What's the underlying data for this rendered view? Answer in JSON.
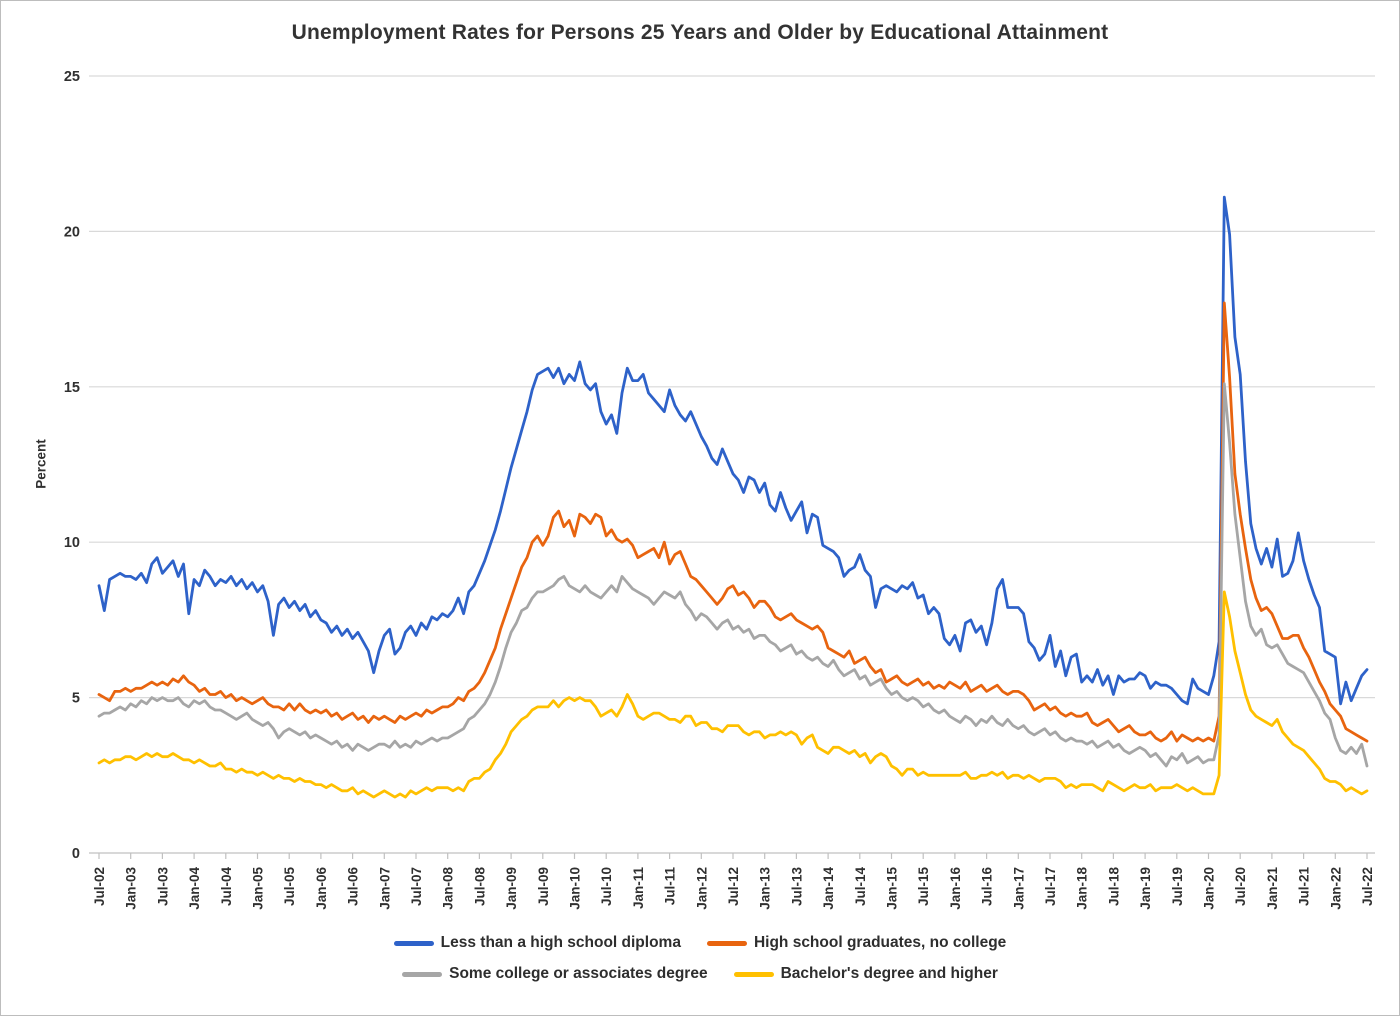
{
  "chart_data": {
    "type": "line",
    "title": "Unemployment Rates for Persons 25 Years and Older by Educational Attainment",
    "xlabel": "",
    "ylabel": "Percent",
    "ylim": [
      0,
      25
    ],
    "y_ticks": [
      0,
      5,
      10,
      15,
      20,
      25
    ],
    "grid": "horizontal",
    "legend_position": "bottom",
    "x_start": "Jul-2002",
    "x_end": "Jul-2022",
    "x_interval": "monthly",
    "x_tick_every_months": 6,
    "x_tick_labels": [
      "Jul-02",
      "Jan-03",
      "Jul-03",
      "Jan-04",
      "Jul-04",
      "Jan-05",
      "Jul-05",
      "Jan-06",
      "Jul-06",
      "Jan-07",
      "Jul-07",
      "Jan-08",
      "Jul-08",
      "Jan-09",
      "Jul-09",
      "Jan-10",
      "Jul-10",
      "Jan-11",
      "Jul-11",
      "Jan-12",
      "Jul-12",
      "Jan-13",
      "Jul-13",
      "Jan-14",
      "Jul-14",
      "Jan-15",
      "Jul-15",
      "Jan-16",
      "Jul-16",
      "Jan-17",
      "Jul-17",
      "Jan-18",
      "Jul-18",
      "Jan-19",
      "Jul-19",
      "Jan-20",
      "Jul-20",
      "Jan-21",
      "Jul-21",
      "Jan-22",
      "Jul-22"
    ],
    "series": [
      {
        "name": "Less than a high school diploma",
        "color": "#2E62C9",
        "values": [
          8.6,
          7.8,
          8.8,
          8.9,
          9.0,
          8.9,
          8.9,
          8.8,
          9.0,
          8.7,
          9.3,
          9.5,
          9.0,
          9.2,
          9.4,
          8.9,
          9.3,
          7.7,
          8.8,
          8.6,
          9.1,
          8.9,
          8.6,
          8.8,
          8.7,
          8.9,
          8.6,
          8.8,
          8.5,
          8.7,
          8.4,
          8.6,
          8.1,
          7.0,
          8.0,
          8.2,
          7.9,
          8.1,
          7.8,
          8.0,
          7.6,
          7.8,
          7.5,
          7.4,
          7.1,
          7.3,
          7.0,
          7.2,
          6.9,
          7.1,
          6.8,
          6.5,
          5.8,
          6.5,
          7.0,
          7.2,
          6.4,
          6.6,
          7.1,
          7.3,
          7.0,
          7.4,
          7.2,
          7.6,
          7.5,
          7.7,
          7.6,
          7.8,
          8.2,
          7.7,
          8.4,
          8.6,
          9.0,
          9.4,
          9.9,
          10.4,
          11.0,
          11.7,
          12.4,
          13.0,
          13.6,
          14.2,
          14.9,
          15.4,
          15.5,
          15.6,
          15.3,
          15.6,
          15.1,
          15.4,
          15.2,
          15.8,
          15.1,
          14.9,
          15.1,
          14.2,
          13.8,
          14.1,
          13.5,
          14.8,
          15.6,
          15.2,
          15.2,
          15.4,
          14.8,
          14.6,
          14.4,
          14.2,
          14.9,
          14.4,
          14.1,
          13.9,
          14.2,
          13.8,
          13.4,
          13.1,
          12.7,
          12.5,
          13.0,
          12.6,
          12.2,
          12.0,
          11.6,
          12.1,
          12.0,
          11.6,
          11.9,
          11.2,
          11.0,
          11.6,
          11.1,
          10.7,
          11.0,
          11.3,
          10.3,
          10.9,
          10.8,
          9.9,
          9.8,
          9.7,
          9.5,
          8.9,
          9.1,
          9.2,
          9.6,
          9.1,
          8.9,
          7.9,
          8.5,
          8.6,
          8.5,
          8.4,
          8.6,
          8.5,
          8.7,
          8.2,
          8.3,
          7.7,
          7.9,
          7.7,
          6.9,
          6.7,
          7.0,
          6.5,
          7.4,
          7.5,
          7.1,
          7.3,
          6.7,
          7.4,
          8.5,
          8.8,
          7.9,
          7.9,
          7.9,
          7.7,
          6.8,
          6.6,
          6.2,
          6.4,
          7.0,
          6.0,
          6.5,
          5.7,
          6.3,
          6.4,
          5.5,
          5.7,
          5.5,
          5.9,
          5.4,
          5.7,
          5.1,
          5.7,
          5.5,
          5.6,
          5.6,
          5.8,
          5.7,
          5.3,
          5.5,
          5.4,
          5.4,
          5.3,
          5.1,
          4.9,
          4.8,
          5.6,
          5.3,
          5.2,
          5.1,
          5.7,
          6.8,
          21.1,
          19.9,
          16.6,
          15.4,
          12.6,
          10.6,
          9.8,
          9.3,
          9.8,
          9.2,
          10.1,
          8.9,
          9.0,
          9.4,
          10.3,
          9.4,
          8.8,
          8.3,
          7.9,
          6.5,
          6.4,
          6.3,
          4.8,
          5.5,
          4.9,
          5.3,
          5.7,
          5.9
        ]
      },
      {
        "name": "High school graduates, no college",
        "color": "#E8640F",
        "values": [
          5.1,
          5.0,
          4.9,
          5.2,
          5.2,
          5.3,
          5.2,
          5.3,
          5.3,
          5.4,
          5.5,
          5.4,
          5.5,
          5.4,
          5.6,
          5.5,
          5.7,
          5.5,
          5.4,
          5.2,
          5.3,
          5.1,
          5.1,
          5.2,
          5.0,
          5.1,
          4.9,
          5.0,
          4.9,
          4.8,
          4.9,
          5.0,
          4.8,
          4.7,
          4.7,
          4.6,
          4.8,
          4.6,
          4.8,
          4.6,
          4.5,
          4.6,
          4.5,
          4.6,
          4.4,
          4.5,
          4.3,
          4.4,
          4.5,
          4.3,
          4.4,
          4.2,
          4.4,
          4.3,
          4.4,
          4.3,
          4.2,
          4.4,
          4.3,
          4.4,
          4.5,
          4.4,
          4.6,
          4.5,
          4.6,
          4.7,
          4.7,
          4.8,
          5.0,
          4.9,
          5.2,
          5.3,
          5.5,
          5.8,
          6.2,
          6.6,
          7.2,
          7.7,
          8.2,
          8.7,
          9.2,
          9.5,
          10.0,
          10.2,
          9.9,
          10.2,
          10.8,
          11.0,
          10.5,
          10.7,
          10.2,
          10.9,
          10.8,
          10.6,
          10.9,
          10.8,
          10.2,
          10.4,
          10.1,
          10.0,
          10.1,
          9.9,
          9.5,
          9.6,
          9.7,
          9.8,
          9.5,
          10.0,
          9.3,
          9.6,
          9.7,
          9.3,
          8.9,
          8.8,
          8.6,
          8.4,
          8.2,
          8.0,
          8.2,
          8.5,
          8.6,
          8.3,
          8.4,
          8.2,
          7.9,
          8.1,
          8.1,
          7.9,
          7.6,
          7.5,
          7.6,
          7.7,
          7.5,
          7.4,
          7.3,
          7.2,
          7.3,
          7.1,
          6.6,
          6.5,
          6.4,
          6.3,
          6.5,
          6.1,
          6.2,
          6.3,
          6.0,
          5.8,
          5.9,
          5.5,
          5.6,
          5.7,
          5.5,
          5.4,
          5.5,
          5.6,
          5.4,
          5.5,
          5.3,
          5.4,
          5.3,
          5.5,
          5.4,
          5.3,
          5.5,
          5.2,
          5.3,
          5.4,
          5.2,
          5.3,
          5.4,
          5.2,
          5.1,
          5.2,
          5.2,
          5.1,
          4.9,
          4.6,
          4.7,
          4.8,
          4.6,
          4.7,
          4.5,
          4.4,
          4.5,
          4.4,
          4.4,
          4.5,
          4.2,
          4.1,
          4.2,
          4.3,
          4.1,
          3.9,
          4.0,
          4.1,
          3.9,
          3.8,
          3.8,
          3.9,
          3.7,
          3.6,
          3.7,
          3.9,
          3.6,
          3.8,
          3.7,
          3.6,
          3.7,
          3.6,
          3.7,
          3.6,
          4.4,
          17.7,
          15.3,
          12.2,
          10.9,
          9.8,
          8.8,
          8.2,
          7.8,
          7.9,
          7.7,
          7.3,
          6.9,
          6.9,
          7.0,
          7.0,
          6.6,
          6.3,
          5.9,
          5.5,
          5.2,
          4.8,
          4.6,
          4.4,
          4.0,
          3.9,
          3.8,
          3.7,
          3.6
        ]
      },
      {
        "name": "Some college or associates degree",
        "color": "#A6A6A6",
        "values": [
          4.4,
          4.5,
          4.5,
          4.6,
          4.7,
          4.6,
          4.8,
          4.7,
          4.9,
          4.8,
          5.0,
          4.9,
          5.0,
          4.9,
          4.9,
          5.0,
          4.8,
          4.7,
          4.9,
          4.8,
          4.9,
          4.7,
          4.6,
          4.6,
          4.5,
          4.4,
          4.3,
          4.4,
          4.5,
          4.3,
          4.2,
          4.1,
          4.2,
          4.0,
          3.7,
          3.9,
          4.0,
          3.9,
          3.8,
          3.9,
          3.7,
          3.8,
          3.7,
          3.6,
          3.5,
          3.6,
          3.4,
          3.5,
          3.3,
          3.5,
          3.4,
          3.3,
          3.4,
          3.5,
          3.5,
          3.4,
          3.6,
          3.4,
          3.5,
          3.4,
          3.6,
          3.5,
          3.6,
          3.7,
          3.6,
          3.7,
          3.7,
          3.8,
          3.9,
          4.0,
          4.3,
          4.4,
          4.6,
          4.8,
          5.1,
          5.5,
          6.0,
          6.6,
          7.1,
          7.4,
          7.8,
          7.9,
          8.2,
          8.4,
          8.4,
          8.5,
          8.6,
          8.8,
          8.9,
          8.6,
          8.5,
          8.4,
          8.6,
          8.4,
          8.3,
          8.2,
          8.4,
          8.6,
          8.4,
          8.9,
          8.7,
          8.5,
          8.4,
          8.3,
          8.2,
          8.0,
          8.2,
          8.4,
          8.3,
          8.2,
          8.4,
          8.0,
          7.8,
          7.5,
          7.7,
          7.6,
          7.4,
          7.2,
          7.4,
          7.5,
          7.2,
          7.3,
          7.1,
          7.2,
          6.9,
          7.0,
          7.0,
          6.8,
          6.7,
          6.5,
          6.6,
          6.7,
          6.4,
          6.5,
          6.3,
          6.2,
          6.3,
          6.1,
          6.0,
          6.2,
          5.9,
          5.7,
          5.8,
          5.9,
          5.6,
          5.7,
          5.4,
          5.5,
          5.6,
          5.3,
          5.1,
          5.2,
          5.0,
          4.9,
          5.0,
          4.9,
          4.7,
          4.8,
          4.6,
          4.5,
          4.6,
          4.4,
          4.3,
          4.2,
          4.4,
          4.3,
          4.1,
          4.3,
          4.2,
          4.4,
          4.2,
          4.1,
          4.3,
          4.1,
          4.0,
          4.1,
          3.9,
          3.8,
          3.9,
          4.0,
          3.8,
          3.9,
          3.7,
          3.6,
          3.7,
          3.6,
          3.6,
          3.5,
          3.6,
          3.4,
          3.5,
          3.6,
          3.4,
          3.5,
          3.3,
          3.2,
          3.3,
          3.4,
          3.3,
          3.1,
          3.2,
          3.0,
          2.8,
          3.1,
          3.0,
          3.2,
          2.9,
          3.0,
          3.1,
          2.9,
          3.0,
          3.0,
          3.8,
          15.1,
          13.2,
          10.9,
          9.5,
          8.1,
          7.3,
          7.0,
          7.2,
          6.7,
          6.6,
          6.7,
          6.4,
          6.1,
          6.0,
          5.9,
          5.8,
          5.5,
          5.2,
          4.9,
          4.5,
          4.3,
          3.7,
          3.3,
          3.2,
          3.4,
          3.2,
          3.5,
          2.8
        ]
      },
      {
        "name": "Bachelor's degree and higher",
        "color": "#FFC000",
        "values": [
          2.9,
          3.0,
          2.9,
          3.0,
          3.0,
          3.1,
          3.1,
          3.0,
          3.1,
          3.2,
          3.1,
          3.2,
          3.1,
          3.1,
          3.2,
          3.1,
          3.0,
          3.0,
          2.9,
          3.0,
          2.9,
          2.8,
          2.8,
          2.9,
          2.7,
          2.7,
          2.6,
          2.7,
          2.6,
          2.6,
          2.5,
          2.6,
          2.5,
          2.4,
          2.5,
          2.4,
          2.4,
          2.3,
          2.4,
          2.3,
          2.3,
          2.2,
          2.2,
          2.1,
          2.2,
          2.1,
          2.0,
          2.0,
          2.1,
          1.9,
          2.0,
          1.9,
          1.8,
          1.9,
          2.0,
          1.9,
          1.8,
          1.9,
          1.8,
          2.0,
          1.9,
          2.0,
          2.1,
          2.0,
          2.1,
          2.1,
          2.1,
          2.0,
          2.1,
          2.0,
          2.3,
          2.4,
          2.4,
          2.6,
          2.7,
          3.0,
          3.2,
          3.5,
          3.9,
          4.1,
          4.3,
          4.4,
          4.6,
          4.7,
          4.7,
          4.7,
          4.9,
          4.7,
          4.9,
          5.0,
          4.9,
          5.0,
          4.9,
          4.9,
          4.7,
          4.4,
          4.5,
          4.6,
          4.4,
          4.7,
          5.1,
          4.8,
          4.4,
          4.3,
          4.4,
          4.5,
          4.5,
          4.4,
          4.3,
          4.3,
          4.2,
          4.4,
          4.4,
          4.1,
          4.2,
          4.2,
          4.0,
          4.0,
          3.9,
          4.1,
          4.1,
          4.1,
          3.9,
          3.8,
          3.9,
          3.9,
          3.7,
          3.8,
          3.8,
          3.9,
          3.8,
          3.9,
          3.8,
          3.5,
          3.7,
          3.8,
          3.4,
          3.3,
          3.2,
          3.4,
          3.4,
          3.3,
          3.2,
          3.3,
          3.1,
          3.2,
          2.9,
          3.1,
          3.2,
          3.1,
          2.8,
          2.7,
          2.5,
          2.7,
          2.7,
          2.5,
          2.6,
          2.5,
          2.5,
          2.5,
          2.5,
          2.5,
          2.5,
          2.5,
          2.6,
          2.4,
          2.4,
          2.5,
          2.5,
          2.6,
          2.5,
          2.6,
          2.4,
          2.5,
          2.5,
          2.4,
          2.5,
          2.4,
          2.3,
          2.4,
          2.4,
          2.4,
          2.3,
          2.1,
          2.2,
          2.1,
          2.2,
          2.2,
          2.2,
          2.1,
          2.0,
          2.3,
          2.2,
          2.1,
          2.0,
          2.1,
          2.2,
          2.1,
          2.1,
          2.2,
          2.0,
          2.1,
          2.1,
          2.1,
          2.2,
          2.1,
          2.0,
          2.1,
          2.0,
          1.9,
          1.9,
          1.9,
          2.5,
          8.4,
          7.6,
          6.5,
          5.8,
          5.1,
          4.6,
          4.4,
          4.3,
          4.2,
          4.1,
          4.3,
          3.9,
          3.7,
          3.5,
          3.4,
          3.3,
          3.1,
          2.9,
          2.7,
          2.4,
          2.3,
          2.3,
          2.2,
          2.0,
          2.1,
          2.0,
          1.9,
          2.0
        ]
      }
    ]
  },
  "style": {
    "gridline_color": "#D9D9D9",
    "axis_color": "#C0C0C0",
    "tick_label_color": "#303030",
    "title_color": "#333333",
    "background": "#FFFFFF"
  }
}
